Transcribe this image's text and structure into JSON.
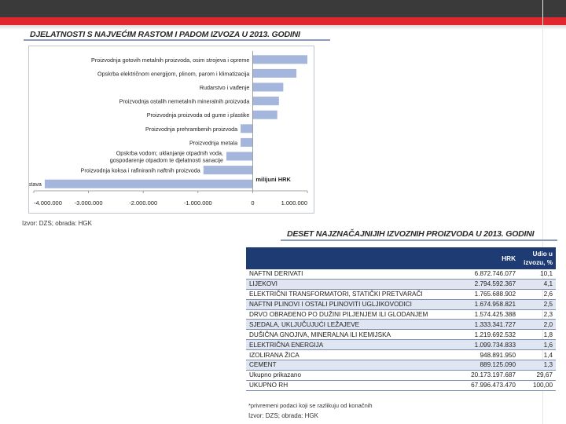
{
  "page": {
    "chart_title": "DJELATNOSTI S NAJVEĆIM RASTOM I PADOM IZVOZA U 2013. GODINI",
    "chart_source": "Izvor: DZS; obrada: HGK",
    "table_title": "DESET NAJZNAČAJNIJIH IZVOZNIH PROIZVODA U 2013. GODINI",
    "table_note": "*privremeni podaci koji se razlikuju od konačnih",
    "table_source": "Izvor: DZS; obrada: HGK"
  },
  "colors": {
    "bar": "#a4b6dc",
    "header": "#1f3b73",
    "stripe": "#dfe6f2",
    "accent": "#e2262d"
  },
  "chart_data": {
    "type": "bar",
    "orientation": "horizontal",
    "title": "DJELATNOSTI S NAJVEĆIM RASTOM I PADOM IZVOZA U 2013. GODINI",
    "categories": [
      "Proizvodnja gotovih metalnih proizvoda, osim strojeva i opreme",
      "Opskrba električnom energijom, plinom, parom i klimatizacija",
      "Rudarstvo i vađenje",
      "Proizvodnja ostalih nemetalnih mineralnih proizvoda",
      "Proizvodnja proizvoda od gume i plastike",
      "Proizvodnja prehrambenih proizvoda",
      "Proizvodnja metala",
      "Opskrba vodom; uklanjanje otpadnih voda, gospodarenje otpadom te djelatnosti sanacije",
      "Proizvodnja koksa i rafiniranih naftnih proizvoda",
      "Proizvodnja ostalih prijevoznih sredstava"
    ],
    "category_lines": [
      [
        "Proizvodnja gotovih metalnih proizvoda, osim strojeva i opreme"
      ],
      [
        "Opskrba električnom energijom, plinom, parom i klimatizacija"
      ],
      [
        "Rudarstvo i vađenje"
      ],
      [
        "Proizvodnja ostalih nemetalnih mineralnih proizvoda"
      ],
      [
        "Proizvodnja proizvoda od gume i plastike"
      ],
      [
        "Proizvodnja prehrambenih proizvoda"
      ],
      [
        "Proizvodnja metala"
      ],
      [
        "Opskrba vodom; uklanjanje otpadnih voda,",
        "gospodarenje otpadom te djelatnosti sanacije"
      ],
      [
        "Proizvodnja koksa i rafiniranih naftnih proizvoda"
      ],
      [
        "Proizvodnja ostalih prijevoznih sredstava"
      ]
    ],
    "values": [
      1000000,
      800000,
      560000,
      480000,
      450000,
      -220000,
      -220000,
      -480000,
      -900000,
      -3800000
    ],
    "xlim": [
      -4000000,
      1000000
    ],
    "xticks": [
      -4000000,
      -3000000,
      -2000000,
      -1000000,
      0,
      1000000
    ],
    "xtick_labels": [
      "-4.000.000",
      "-3.000.000",
      "-2.000.000",
      "-1.000.000",
      "0",
      "1.000.000"
    ],
    "unit_label": "milijuni HRK",
    "grid": false,
    "legend": "none"
  },
  "table": {
    "headers": [
      "",
      "HRK",
      "Udio u izvozu, %"
    ],
    "rows": [
      [
        "NAFTNI DERIVATI",
        "6.872.746.077",
        "10,1"
      ],
      [
        "LIJEKOVI",
        "2.794.592.367",
        "4,1"
      ],
      [
        "ELEKTRIČNI TRANSFORMATORI, STATIČKI PRETVARAČI",
        "1.765.688.902",
        "2,6"
      ],
      [
        "NAFTNI PLINOVI I OSTALI PLINOVITI UGLJIKOVODICI",
        "1.674.958.821",
        "2,5"
      ],
      [
        "DRVO OBRAĐENO PO DUŽINI PILJENJEM ILI GLODANJEM",
        "1.574.425.388",
        "2,3"
      ],
      [
        "SJEDALA, UKLJUČUJUĆI LEŽAJEVE",
        "1.333.341.727",
        "2,0"
      ],
      [
        "DUŠIČNA GNOJIVA, MINERALNA ILI KEMIJSKA",
        "1.219.692.532",
        "1,8"
      ],
      [
        "ELEKTRIČNA ENERGIJA",
        "1.099.734.833",
        "1,6"
      ],
      [
        "IZOLIRANA ŽICA",
        "948.891.950",
        "1,4"
      ],
      [
        "CEMENT",
        "889.125.090",
        "1,3"
      ],
      [
        "Ukupno prikazano",
        "20.173.197.687",
        "29,67"
      ],
      [
        "UKUPNO RH",
        "67.996.473.470",
        "100,00"
      ]
    ]
  }
}
